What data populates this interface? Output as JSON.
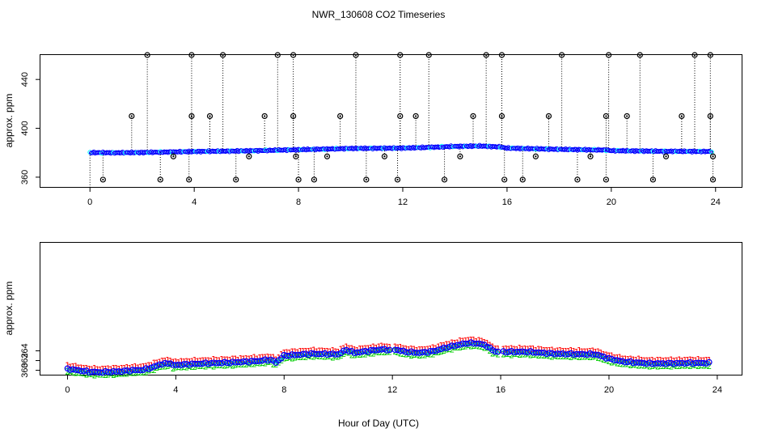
{
  "figure": {
    "title": "NWR_130608  CO2 Timeseries",
    "shared_xlabel": "Hour of Day (UTC)",
    "colors": {
      "axis": "#000000",
      "trace_upper": "#0000ff",
      "trace_upper_cyan": "#00ffff",
      "stem": "#000000",
      "series1": "#ff0000",
      "series2": "#00cc00",
      "series3": "#0000ff",
      "series3_fill": "#00aaff"
    },
    "icons": {
      "outlier_marker": "circle-marker-icon"
    }
  },
  "chart_data": [
    {
      "id": "top",
      "type": "scatter",
      "title": "",
      "xlabel": "",
      "ylabel": "approx. ppm",
      "xlim": [
        -1.9,
        25.0
      ],
      "ylim": [
        352,
        460
      ],
      "xticks": [
        0,
        4,
        8,
        12,
        16,
        20,
        24
      ],
      "yticks": [
        360,
        400,
        440
      ],
      "ytick_labels": [
        "360",
        "400",
        "440"
      ],
      "grid": false,
      "baseline": {
        "name": "continuous trace",
        "knots_x": [
          0,
          1,
          2,
          3,
          4,
          6,
          8,
          10,
          12,
          13,
          14,
          15,
          15.7,
          16,
          18,
          19.8,
          20,
          22,
          24
        ],
        "knots_y": [
          380.1,
          380.0,
          380.2,
          380.6,
          381.0,
          381.5,
          382.5,
          383.5,
          383.8,
          384.4,
          385.2,
          385.5,
          384.8,
          383.8,
          382.8,
          382.2,
          381.7,
          381.2,
          381.0
        ]
      },
      "high_outliers_y": 460,
      "high_outliers_x": [
        2.2,
        3.9,
        5.1,
        7.2,
        7.8,
        10.2,
        11.9,
        13.0,
        15.2,
        15.8,
        18.1,
        19.9,
        21.1,
        23.2,
        23.8
      ],
      "mid_outliers_y": 410,
      "mid_outliers_x": [
        1.6,
        3.9,
        4.6,
        6.7,
        7.8,
        9.6,
        11.9,
        12.5,
        14.7,
        15.8,
        17.6,
        19.8,
        20.6,
        22.7,
        23.8
      ],
      "low_outliers_y": 358,
      "low_outliers_x": [
        0.5,
        2.7,
        3.8,
        5.6,
        8.0,
        8.6,
        10.6,
        11.8,
        13.6,
        15.9,
        16.6,
        18.7,
        19.8,
        21.6,
        23.9
      ],
      "minor_outliers_y": 377,
      "minor_outliers_x": [
        3.2,
        6.1,
        7.9,
        9.1,
        11.3,
        14.2,
        17.1,
        19.2,
        22.1,
        23.9
      ]
    },
    {
      "id": "bottom",
      "type": "scatter",
      "title": "",
      "xlabel": "Hour of Day (UTC)",
      "ylabel": "approx. ppm",
      "xlim": [
        -1.0,
        24.9
      ],
      "ylim": [
        359.1,
        386.2
      ],
      "xticks": [
        0,
        4,
        8,
        12,
        16,
        20,
        24
      ],
      "yticks": [
        360,
        362,
        364
      ],
      "ytick_labels": [
        "360",
        "362",
        "364"
      ],
      "grid": false,
      "series": [
        {
          "name": "1",
          "marker_char": "1",
          "offset": 0.6,
          "knots_x": [
            0,
            0.4,
            0.8,
            1.2,
            2.0,
            2.4,
            2.8,
            3.2,
            3.4,
            3.8,
            3.9,
            4.0,
            5.0,
            6.0,
            7.0,
            7.5,
            7.7,
            8.0,
            9.0,
            10.0,
            10.3,
            10.6,
            11.0,
            11.6,
            11.9,
            12.0,
            12.5,
            13.0,
            13.5,
            14.0,
            14.5,
            14.8,
            15.2,
            15.5,
            15.7,
            15.9,
            17.0,
            18.0,
            19.0,
            19.5,
            20.0,
            20.5,
            21.0,
            21.5,
            22.0,
            23.0,
            23.7
          ],
          "knots_y": [
            360.3,
            360.0,
            359.7,
            359.6,
            359.8,
            360.0,
            360.1,
            360.7,
            361.2,
            361.5,
            361.0,
            361.1,
            361.4,
            361.6,
            361.9,
            362.2,
            361.6,
            363.0,
            363.4,
            363.3,
            364.2,
            363.6,
            363.9,
            364.3,
            364.2,
            364.4,
            363.8,
            363.6,
            363.9,
            364.7,
            365.3,
            365.6,
            365.5,
            365.0,
            364.1,
            363.8,
            363.8,
            363.4,
            363.3,
            363.3,
            362.4,
            361.8,
            361.6,
            361.4,
            361.4,
            361.5,
            361.5
          ]
        },
        {
          "name": "2",
          "marker_char": "2",
          "offset": -0.45,
          "knots_x": [
            0,
            0.4,
            0.8,
            1.2,
            2.0,
            2.4,
            2.8,
            3.2,
            3.4,
            3.8,
            3.9,
            4.0,
            5.0,
            6.0,
            7.0,
            7.5,
            7.7,
            8.0,
            9.0,
            10.0,
            10.3,
            10.6,
            11.0,
            11.6,
            11.9,
            12.0,
            12.5,
            13.0,
            13.5,
            14.0,
            14.5,
            14.8,
            15.2,
            15.5,
            15.7,
            15.9,
            17.0,
            18.0,
            19.0,
            19.5,
            20.0,
            20.5,
            21.0,
            21.5,
            22.0,
            23.0,
            23.7
          ],
          "knots_y": [
            360.3,
            360.0,
            359.7,
            359.6,
            359.8,
            360.0,
            360.1,
            360.7,
            361.2,
            361.5,
            361.0,
            361.1,
            361.4,
            361.6,
            361.9,
            362.2,
            361.6,
            363.0,
            363.4,
            363.3,
            364.2,
            363.6,
            363.9,
            364.3,
            364.2,
            364.4,
            363.8,
            363.6,
            363.9,
            364.7,
            365.3,
            365.6,
            365.5,
            365.0,
            364.1,
            363.8,
            363.8,
            363.4,
            363.3,
            363.3,
            362.4,
            361.8,
            361.6,
            361.4,
            361.4,
            361.5,
            361.5
          ]
        },
        {
          "name": "3",
          "marker_char": "3",
          "offset": 0.0,
          "knots_x": [
            0,
            0.4,
            0.8,
            1.2,
            2.0,
            2.4,
            2.8,
            3.2,
            3.4,
            3.8,
            3.9,
            4.0,
            5.0,
            6.0,
            7.0,
            7.5,
            7.7,
            8.0,
            9.0,
            10.0,
            10.3,
            10.6,
            11.0,
            11.6,
            11.9,
            12.0,
            12.5,
            13.0,
            13.5,
            14.0,
            14.5,
            14.8,
            15.2,
            15.5,
            15.7,
            15.9,
            17.0,
            18.0,
            19.0,
            19.5,
            20.0,
            20.5,
            21.0,
            21.5,
            22.0,
            23.0,
            23.7
          ],
          "knots_y": [
            360.3,
            360.0,
            359.7,
            359.6,
            359.8,
            360.0,
            360.1,
            360.7,
            361.2,
            361.5,
            361.0,
            361.1,
            361.4,
            361.6,
            361.9,
            362.2,
            361.6,
            363.0,
            363.4,
            363.3,
            364.2,
            363.6,
            363.9,
            364.3,
            364.2,
            364.4,
            363.8,
            363.6,
            363.9,
            364.7,
            365.3,
            365.6,
            365.5,
            365.0,
            364.1,
            363.8,
            363.8,
            363.4,
            363.3,
            363.3,
            362.4,
            361.8,
            361.6,
            361.4,
            361.4,
            361.5,
            361.5
          ]
        }
      ],
      "gaps_x": [
        [
          3.95,
          4.0
        ],
        [
          11.95,
          12.0
        ],
        [
          15.9,
          16.0
        ]
      ],
      "sample_step_hours": 0.1
    }
  ]
}
